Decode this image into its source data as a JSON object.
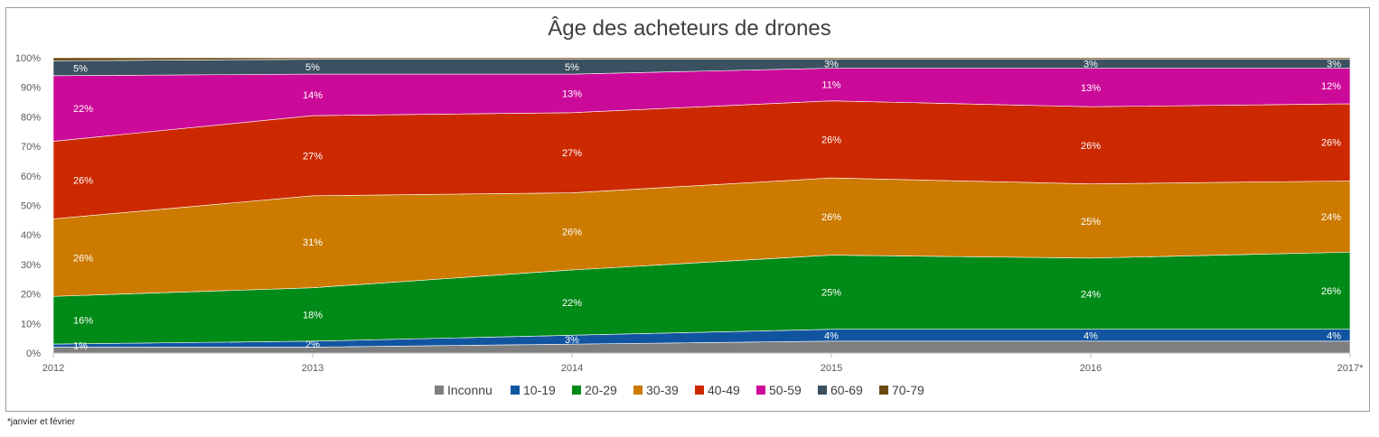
{
  "chart_data": {
    "type": "area",
    "stacked": "percent",
    "title": "Âge des acheteurs de drones",
    "x": [
      "2012",
      "2013",
      "2014",
      "2015",
      "2016",
      "2017*"
    ],
    "ylim": [
      0,
      100
    ],
    "yticks": [
      "0%",
      "10%",
      "20%",
      "30%",
      "40%",
      "50%",
      "60%",
      "70%",
      "80%",
      "90%",
      "100%"
    ],
    "legend_position": "bottom",
    "grid": false,
    "series": [
      {
        "name": "Inconnu",
        "color": "#7f7f7f",
        "values": [
          2,
          2,
          3,
          4,
          4,
          4
        ],
        "labels": [
          "",
          "",
          "",
          "",
          "",
          ""
        ]
      },
      {
        "name": "10-19",
        "color": "#1155a1",
        "values": [
          1,
          2,
          3,
          4,
          4,
          4
        ],
        "labels": [
          "1%",
          "2%",
          "3%",
          "4%",
          "4%",
          "4%"
        ]
      },
      {
        "name": "20-29",
        "color": "#008a17",
        "values": [
          16,
          18,
          22,
          25,
          24,
          26
        ],
        "labels": [
          "16%",
          "18%",
          "22%",
          "25%",
          "24%",
          "26%"
        ]
      },
      {
        "name": "30-39",
        "color": "#cc7a00",
        "values": [
          26,
          31,
          26,
          26,
          25,
          24
        ],
        "labels": [
          "26%",
          "31%",
          "26%",
          "26%",
          "25%",
          "24%"
        ]
      },
      {
        "name": "40-49",
        "color": "#cc2900",
        "values": [
          26,
          27,
          27,
          26,
          26,
          26
        ],
        "labels": [
          "26%",
          "27%",
          "27%",
          "26%",
          "26%",
          "26%"
        ]
      },
      {
        "name": "50-59",
        "color": "#cc0a99",
        "values": [
          22,
          14,
          13,
          11,
          13,
          12
        ],
        "labels": [
          "22%",
          "14%",
          "13%",
          "11%",
          "13%",
          "12%"
        ]
      },
      {
        "name": "60-69",
        "color": "#3b5060",
        "values": [
          5,
          5,
          5,
          3,
          3,
          3
        ],
        "labels": [
          "5%",
          "5%",
          "5%",
          "3%",
          "3%",
          "3%"
        ]
      },
      {
        "name": "70-79",
        "color": "#6b4a10",
        "values": [
          1,
          0.5,
          0.5,
          0.5,
          0.5,
          0.5
        ],
        "labels": [
          "",
          "",
          "",
          "",
          "",
          ""
        ]
      }
    ]
  },
  "footnote": "*janvier et février"
}
